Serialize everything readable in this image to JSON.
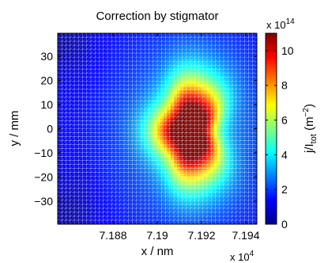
{
  "chart_data": {
    "type": "heatmap",
    "title": "Correction by stigmator",
    "xlabel": "x / nm",
    "x_multiplier": "x 10",
    "x_multiplier_exp": "4",
    "ylabel": "y / mm",
    "xlim": [
      71855,
      71945
    ],
    "ylim": [
      -39.6,
      39.6
    ],
    "x_ticks": [
      71880,
      71900,
      71920,
      71940
    ],
    "x_tick_labels": [
      "7.188",
      "7.19",
      "7.192",
      "7.194"
    ],
    "y_ticks": [
      -30,
      -20,
      -10,
      0,
      10,
      20,
      30
    ],
    "y_tick_labels": [
      "−30",
      "−20",
      "−10",
      "0",
      "10",
      "20",
      "30"
    ],
    "colorbar": {
      "label_main": "j/I",
      "label_sub": "tot",
      "label_unit_open": " (m",
      "label_unit_exp": "−2",
      "label_unit_close": ")",
      "multiplier": "x 10",
      "multiplier_exp": "14",
      "range": [
        0,
        11
      ],
      "ticks": [
        0,
        2,
        4,
        6,
        8,
        10
      ],
      "tick_labels": [
        "0",
        "2",
        "4",
        "6",
        "8",
        "10"
      ],
      "colormap": "jet"
    },
    "peak": {
      "x": 71915,
      "y": -1,
      "value": 11
    },
    "grid": true
  }
}
